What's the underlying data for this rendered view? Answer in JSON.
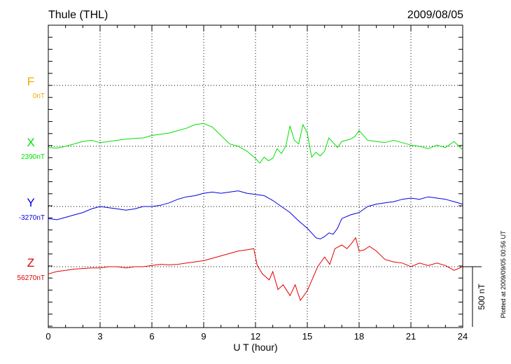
{
  "chart_data": {
    "type": "line",
    "title": "Thule (THL)",
    "date": "2009/08/05",
    "xlabel": "U T (hour)",
    "xlim": [
      0,
      24
    ],
    "xticks": [
      0,
      3,
      6,
      9,
      12,
      15,
      18,
      21,
      24
    ],
    "scale_label": "500 nT",
    "scale_nT": 500,
    "plotted_note": "Plotted at 2009/09/05 00:56 UT",
    "series": [
      {
        "name": "F",
        "baseline_label": "0nT",
        "color": "#f0a800",
        "x": [],
        "y": []
      },
      {
        "name": "X",
        "baseline_label": "2390nT",
        "color": "#00e000",
        "x": [
          0,
          0.5,
          1,
          1.5,
          2,
          2.5,
          3,
          3.5,
          4,
          4.5,
          5,
          5.5,
          6,
          6.5,
          7,
          7.5,
          8,
          8.5,
          9,
          9.5,
          10,
          10.5,
          11,
          11.5,
          12,
          12.25,
          12.5,
          12.75,
          13,
          13.25,
          13.5,
          13.75,
          14,
          14.25,
          14.5,
          14.75,
          15,
          15.25,
          15.5,
          15.75,
          16,
          16.25,
          16.5,
          16.75,
          17,
          17.25,
          17.5,
          17.75,
          18,
          18.5,
          19,
          19.5,
          20,
          20.5,
          21,
          21.5,
          22,
          22.5,
          23,
          23.5,
          24
        ],
        "y": [
          -10,
          -15,
          0,
          20,
          40,
          50,
          30,
          40,
          50,
          60,
          65,
          70,
          90,
          100,
          110,
          130,
          150,
          180,
          190,
          160,
          90,
          20,
          0,
          -40,
          -100,
          -140,
          -90,
          -120,
          -100,
          -20,
          -60,
          0,
          170,
          50,
          20,
          180,
          110,
          -90,
          -50,
          -80,
          -40,
          70,
          30,
          -10,
          40,
          50,
          60,
          80,
          130,
          50,
          40,
          30,
          50,
          30,
          10,
          0,
          -20,
          10,
          -10,
          40,
          -30
        ]
      },
      {
        "name": "Y",
        "baseline_label": "-3270nT",
        "color": "#0000e0",
        "x": [
          0,
          0.5,
          1,
          1.5,
          2,
          2.5,
          3,
          3.5,
          4,
          4.5,
          5,
          5.5,
          6,
          6.5,
          7,
          7.5,
          8,
          8.5,
          9,
          9.5,
          10,
          10.5,
          11,
          11.5,
          12,
          12.5,
          13,
          13.5,
          14,
          14.5,
          15,
          15.25,
          15.5,
          15.75,
          16,
          16.25,
          16.5,
          16.75,
          17,
          17.5,
          18,
          18.5,
          19,
          19.5,
          20,
          20.5,
          21,
          21.5,
          22,
          22.5,
          23,
          23.5,
          24
        ],
        "y": [
          -100,
          -110,
          -90,
          -70,
          -50,
          -20,
          0,
          -10,
          -20,
          -30,
          -20,
          0,
          0,
          10,
          30,
          60,
          80,
          90,
          110,
          120,
          110,
          120,
          130,
          110,
          100,
          90,
          50,
          0,
          -50,
          -120,
          -180,
          -220,
          -260,
          -270,
          -250,
          -220,
          -230,
          -180,
          -100,
          -70,
          -50,
          0,
          20,
          30,
          40,
          60,
          70,
          60,
          80,
          70,
          60,
          40,
          20
        ]
      },
      {
        "name": "Z",
        "baseline_label": "56270nT",
        "color": "#e00000",
        "x": [
          0,
          0.5,
          1,
          1.5,
          2,
          2.5,
          3,
          3.5,
          4,
          4.5,
          5,
          5.5,
          6,
          6.5,
          7,
          7.5,
          8,
          8.5,
          9,
          9.5,
          10,
          10.5,
          11,
          11.5,
          11.9,
          12.1,
          12.4,
          12.8,
          13,
          13.3,
          13.6,
          14,
          14.3,
          14.6,
          15,
          15.3,
          15.6,
          16,
          16.3,
          16.6,
          17,
          17.3,
          17.6,
          17.8,
          18,
          18.3,
          18.6,
          19,
          19.5,
          20,
          20.5,
          21,
          21.5,
          22,
          22.5,
          23,
          23.5,
          24
        ],
        "y": [
          -60,
          -40,
          -30,
          -20,
          -15,
          -10,
          -10,
          0,
          0,
          -10,
          0,
          0,
          10,
          20,
          15,
          20,
          30,
          40,
          50,
          70,
          90,
          110,
          130,
          140,
          150,
          10,
          -60,
          -110,
          -40,
          -190,
          -150,
          -240,
          -150,
          -280,
          -200,
          -100,
          0,
          80,
          20,
          150,
          180,
          150,
          200,
          240,
          130,
          140,
          170,
          130,
          60,
          40,
          30,
          0,
          30,
          10,
          30,
          10,
          -30,
          0
        ]
      }
    ],
    "grid": true
  }
}
